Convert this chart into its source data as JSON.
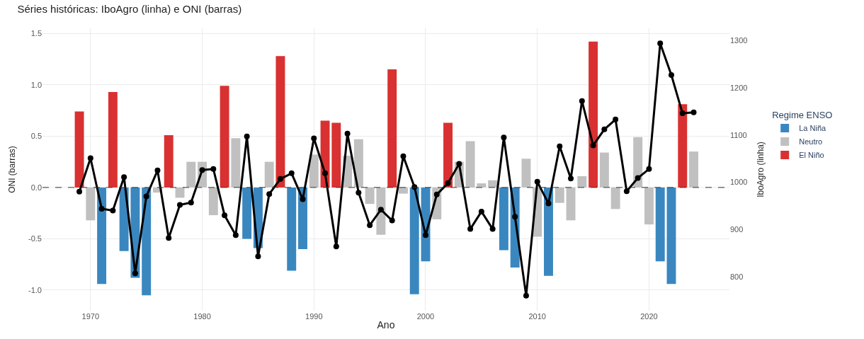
{
  "chart_data": {
    "type": "bar",
    "title": "Séries históricas: IboAgro (linha) e ONI (barras)",
    "xlabel": "Ano",
    "ylabel": "ONI (barras)",
    "y2label": "IboAgro (linha)",
    "legend_title": "Regime ENSO",
    "x": [
      1969,
      1970,
      1971,
      1972,
      1973,
      1974,
      1975,
      1976,
      1977,
      1978,
      1979,
      1980,
      1981,
      1982,
      1983,
      1984,
      1985,
      1986,
      1987,
      1988,
      1989,
      1990,
      1991,
      1992,
      1993,
      1994,
      1995,
      1996,
      1997,
      1998,
      1999,
      2000,
      2001,
      2002,
      2003,
      2004,
      2005,
      2006,
      2007,
      2008,
      2009,
      2010,
      2011,
      2012,
      2013,
      2014,
      2015,
      2016,
      2017,
      2018,
      2019,
      2020,
      2021,
      2022,
      2023,
      2024
    ],
    "series": [
      {
        "name": "La Niña",
        "color": "#3a87c0",
        "values": [
          null,
          null,
          -0.94,
          null,
          -0.62,
          -0.88,
          -1.05,
          null,
          null,
          null,
          null,
          null,
          null,
          null,
          null,
          -0.5,
          -0.59,
          null,
          null,
          -0.81,
          -0.6,
          null,
          null,
          null,
          null,
          null,
          null,
          null,
          null,
          null,
          -1.04,
          -0.72,
          null,
          null,
          null,
          null,
          null,
          null,
          -0.61,
          -0.78,
          null,
          null,
          -0.86,
          null,
          null,
          null,
          null,
          null,
          null,
          null,
          null,
          null,
          -0.72,
          -0.94,
          null,
          null
        ]
      },
      {
        "name": "Neutro",
        "color": "#c0c0c0",
        "values": [
          null,
          -0.32,
          null,
          null,
          null,
          null,
          null,
          -0.05,
          null,
          -0.1,
          0.25,
          0.25,
          -0.27,
          null,
          0.48,
          null,
          null,
          0.25,
          null,
          null,
          null,
          0.32,
          null,
          null,
          0.31,
          0.47,
          -0.16,
          -0.46,
          null,
          -0.06,
          null,
          null,
          -0.31,
          null,
          0.25,
          0.45,
          0.04,
          0.07,
          null,
          null,
          0.28,
          -0.48,
          null,
          -0.15,
          -0.32,
          0.11,
          null,
          0.34,
          -0.21,
          null,
          0.49,
          -0.36,
          null,
          null,
          null,
          0.35
        ]
      },
      {
        "name": "El Niño",
        "color": "#d93131",
        "values": [
          0.74,
          null,
          null,
          0.93,
          null,
          null,
          null,
          null,
          0.51,
          null,
          null,
          null,
          null,
          0.99,
          null,
          null,
          null,
          null,
          1.28,
          null,
          null,
          null,
          0.65,
          0.63,
          null,
          null,
          null,
          null,
          1.15,
          null,
          null,
          null,
          null,
          0.63,
          null,
          null,
          null,
          null,
          null,
          null,
          null,
          null,
          null,
          null,
          null,
          null,
          1.42,
          null,
          null,
          null,
          null,
          null,
          null,
          null,
          0.81,
          null
        ]
      },
      {
        "type": "line",
        "axis": "y2",
        "color": "#000000",
        "marker": "circle",
        "line_style": "solid",
        "values": [
          980,
          1051,
          944,
          940,
          1011,
          807,
          970,
          1025,
          882,
          952,
          957,
          1026,
          1028,
          930,
          888,
          1097,
          843,
          975,
          1007,
          1019,
          964,
          1093,
          1019,
          864,
          1103,
          978,
          909,
          942,
          919,
          1055,
          990,
          888,
          974,
          998,
          1039,
          901,
          938,
          901,
          1095,
          927,
          760,
          1001,
          955,
          1076,
          1008,
          1172,
          1078,
          1112,
          1133,
          981,
          1009,
          1028,
          1294,
          1227,
          1146,
          1148
        ]
      }
    ],
    "xlim": [
      1965.7,
      2027.2
    ],
    "xticks": [
      1970,
      1980,
      1990,
      2000,
      2010,
      2020
    ],
    "ylim": [
      -1.2,
      1.55
    ],
    "yticks": [
      {
        "value": -1.0,
        "label": "-1.0"
      },
      {
        "value": -0.5,
        "label": "-0.5"
      },
      {
        "value": 0.0,
        "label": "0.0"
      },
      {
        "value": 0.5,
        "label": "0.5"
      },
      {
        "value": 1.0,
        "label": "1.0"
      },
      {
        "value": 1.5,
        "label": "1.5"
      }
    ],
    "y2lim": [
      728,
      1326
    ],
    "y2ticks": [
      800,
      900,
      1000,
      1100,
      1200,
      1300
    ],
    "ref_lines": [
      {
        "axis": "y",
        "value": 0,
        "color": "#333333",
        "line_style": "dashed"
      }
    ],
    "grid": true,
    "legend": "right"
  }
}
